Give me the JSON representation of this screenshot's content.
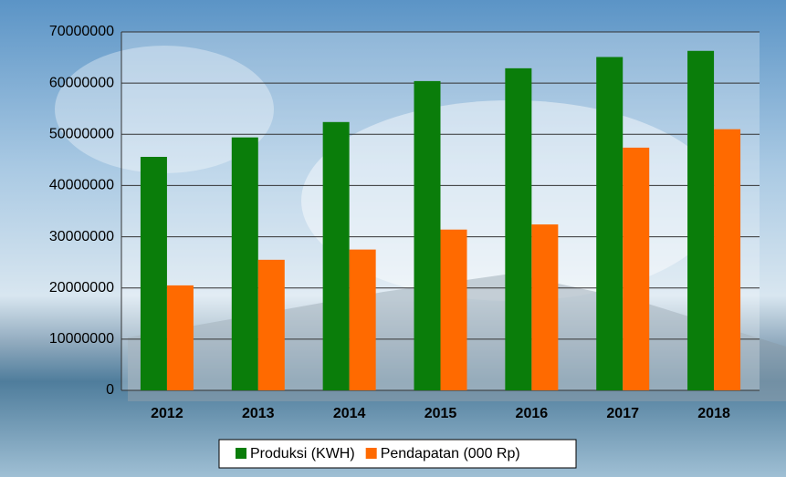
{
  "chart_data": {
    "type": "bar",
    "categories": [
      "2012",
      "2013",
      "2014",
      "2015",
      "2016",
      "2017",
      "2018"
    ],
    "series": [
      {
        "name": "Produksi (KWH)",
        "color": "#0a7d0a",
        "values": [
          45600000,
          49400000,
          52400000,
          60400000,
          62900000,
          65100000,
          66300000
        ]
      },
      {
        "name": "Pendapatan (000 Rp)",
        "color": "#ff6a00",
        "values": [
          20500000,
          25500000,
          27500000,
          31400000,
          32400000,
          47400000,
          51000000
        ]
      }
    ],
    "ylim": [
      0,
      70000000
    ],
    "yticks": [
      0,
      10000000,
      20000000,
      30000000,
      40000000,
      50000000,
      60000000,
      70000000
    ],
    "grid": true,
    "legend": "bottom"
  }
}
